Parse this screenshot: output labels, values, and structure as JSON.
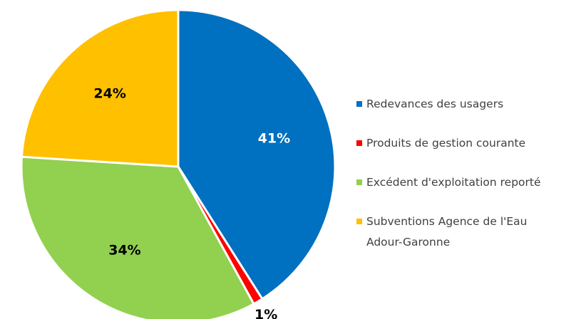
{
  "chart_data": {
    "type": "pie",
    "categories": [
      "Redevances des usagers",
      "Produits de gestion courante",
      "Excédent d'exploitation reporté",
      "Subventions Agence de l'Eau Adour-Garonne"
    ],
    "values": [
      41,
      1,
      34,
      24
    ],
    "value_labels": [
      "41%",
      "1%",
      "34%",
      "24%"
    ],
    "colors": [
      "#0070c0",
      "#ff0000",
      "#92d050",
      "#ffc000"
    ],
    "legend": "right"
  }
}
